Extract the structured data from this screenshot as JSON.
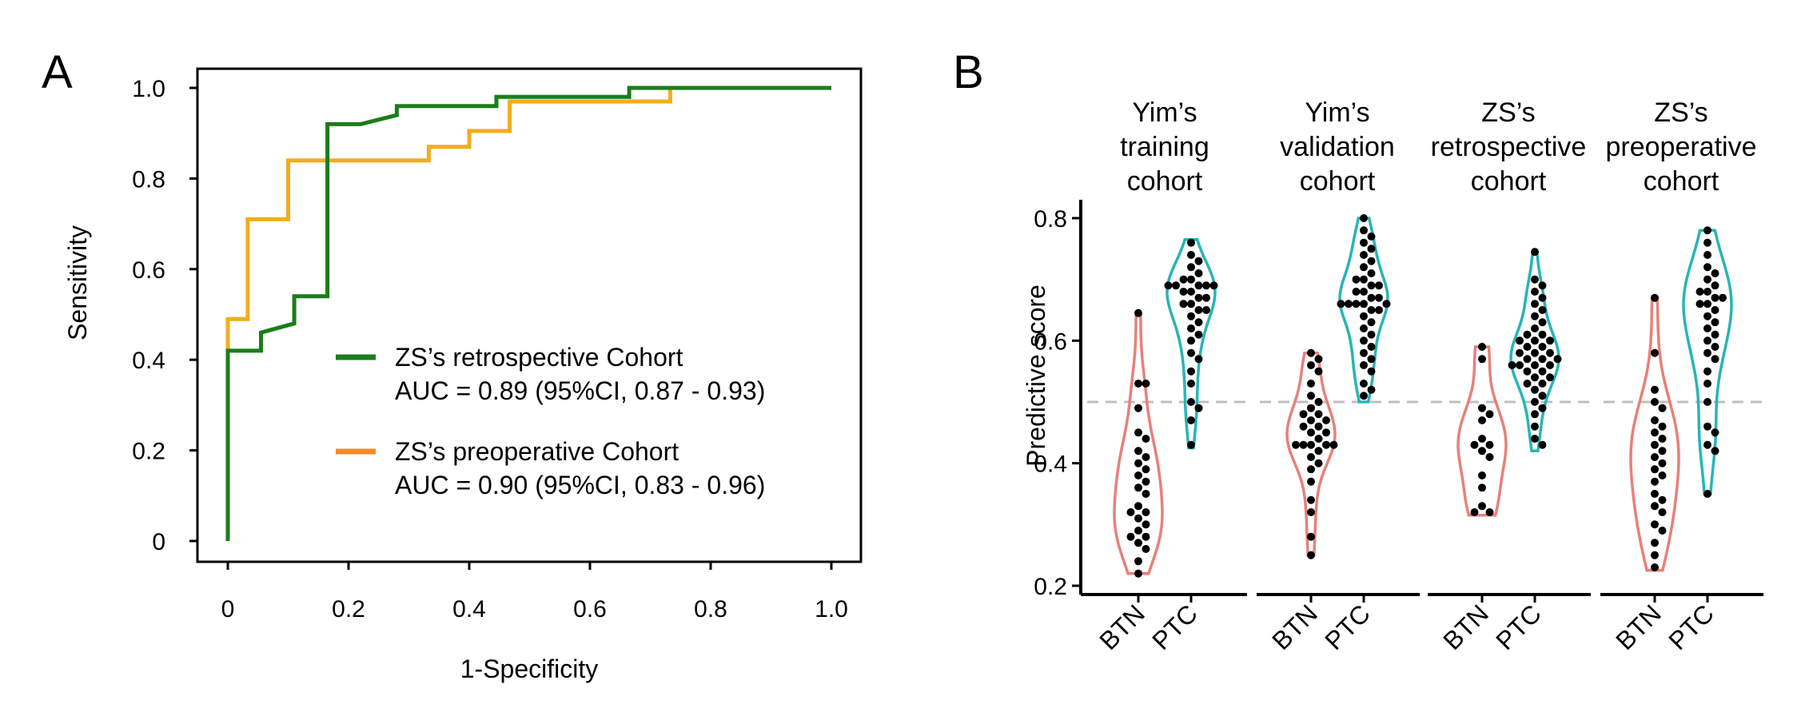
{
  "colors": {
    "green": "#1a7d1a",
    "orange": "#f2ad1c",
    "legend_orange": "#f28c28",
    "btn": "#e8807a",
    "ptc": "#26b5b8",
    "reference_line": "#bfbfbf",
    "dots": "#000000"
  },
  "panels": {
    "a_label": "A",
    "b_label": "B"
  },
  "legend": {
    "entries": [
      {
        "line1": "ZS’s retrospective Cohort",
        "line2": "AUC = 0.89 (95%CI, 0.87 - 0.93)",
        "color_key": "green"
      },
      {
        "line1": "ZS’s preoperative Cohort",
        "line2": "AUC = 0.90 (95%CI, 0.83 - 0.96)",
        "color_key": "legend_orange"
      }
    ]
  },
  "chart_data": [
    {
      "type": "line",
      "panel": "A",
      "xlabel": "1-Specificity",
      "ylabel": "Sensitivity",
      "xlim": [
        0,
        1
      ],
      "ylim": [
        0,
        1
      ],
      "xticks": [
        "0",
        "0.2",
        "0.4",
        "0.6",
        "0.8",
        "1.0"
      ],
      "yticks": [
        "0",
        "0.2",
        "0.4",
        "0.6",
        "0.8",
        "1.0"
      ],
      "legend_position": "bottom-right",
      "series": [
        {
          "name": "ZS’s retrospective Cohort",
          "color_key": "green",
          "points": [
            [
              0,
              0
            ],
            [
              0,
              0.42
            ],
            [
              0.055,
              0.42
            ],
            [
              0.055,
              0.46
            ],
            [
              0.11,
              0.48
            ],
            [
              0.11,
              0.54
            ],
            [
              0.165,
              0.54
            ],
            [
              0.165,
              0.92
            ],
            [
              0.22,
              0.92
            ],
            [
              0.28,
              0.94
            ],
            [
              0.28,
              0.96
            ],
            [
              0.445,
              0.96
            ],
            [
              0.445,
              0.98
            ],
            [
              0.665,
              0.98
            ],
            [
              0.665,
              1.0
            ],
            [
              1.0,
              1.0
            ]
          ]
        },
        {
          "name": "ZS’s preoperative Cohort",
          "color_key": "orange",
          "points": [
            [
              0,
              0.42
            ],
            [
              0,
              0.49
            ],
            [
              0.033,
              0.49
            ],
            [
              0.033,
              0.71
            ],
            [
              0.1,
              0.71
            ],
            [
              0.1,
              0.84
            ],
            [
              0.333,
              0.84
            ],
            [
              0.333,
              0.87
            ],
            [
              0.4,
              0.87
            ],
            [
              0.4,
              0.905
            ],
            [
              0.467,
              0.905
            ],
            [
              0.467,
              0.97
            ],
            [
              0.733,
              0.97
            ],
            [
              0.733,
              1.0
            ],
            [
              1.0,
              1.0
            ]
          ]
        }
      ]
    },
    {
      "type": "violin",
      "panel": "B",
      "ylabel": "Predictive score",
      "ylim": [
        0.2,
        0.8
      ],
      "yticks": [
        "0.2",
        "0.4",
        "0.6",
        "0.8"
      ],
      "reference_line": 0.5,
      "categories": [
        "BTN",
        "PTC"
      ],
      "facets": [
        {
          "title": [
            "Yim’s",
            "training",
            "cohort"
          ],
          "groups": [
            {
              "name": "BTN",
              "color_key": "btn",
              "min": 0.22,
              "max": 0.645,
              "values": [
                0.645,
                0.53,
                0.53,
                0.49,
                0.45,
                0.44,
                0.42,
                0.41,
                0.4,
                0.39,
                0.38,
                0.37,
                0.36,
                0.35,
                0.33,
                0.32,
                0.32,
                0.31,
                0.3,
                0.29,
                0.28,
                0.28,
                0.27,
                0.26,
                0.24,
                0.22
              ]
            },
            {
              "name": "PTC",
              "color_key": "ptc",
              "min": 0.425,
              "max": 0.765,
              "values": [
                0.76,
                0.74,
                0.73,
                0.72,
                0.71,
                0.7,
                0.7,
                0.69,
                0.69,
                0.69,
                0.69,
                0.69,
                0.68,
                0.68,
                0.67,
                0.67,
                0.66,
                0.66,
                0.65,
                0.65,
                0.64,
                0.63,
                0.62,
                0.61,
                0.6,
                0.58,
                0.57,
                0.55,
                0.53,
                0.5,
                0.49,
                0.47,
                0.43
              ]
            }
          ]
        },
        {
          "title": [
            "Yim’s",
            "validation",
            "cohort"
          ],
          "groups": [
            {
              "name": "BTN",
              "color_key": "btn",
              "min": 0.25,
              "max": 0.58,
              "values": [
                0.58,
                0.57,
                0.56,
                0.55,
                0.53,
                0.51,
                0.5,
                0.49,
                0.48,
                0.48,
                0.47,
                0.47,
                0.46,
                0.46,
                0.45,
                0.45,
                0.44,
                0.43,
                0.43,
                0.43,
                0.43,
                0.43,
                0.42,
                0.41,
                0.4,
                0.39,
                0.37,
                0.34,
                0.32,
                0.28,
                0.25
              ]
            },
            {
              "name": "PTC",
              "color_key": "ptc",
              "min": 0.5,
              "max": 0.8,
              "values": [
                0.8,
                0.78,
                0.77,
                0.76,
                0.75,
                0.74,
                0.73,
                0.72,
                0.71,
                0.7,
                0.7,
                0.69,
                0.69,
                0.68,
                0.68,
                0.67,
                0.67,
                0.66,
                0.66,
                0.66,
                0.66,
                0.66,
                0.65,
                0.65,
                0.64,
                0.63,
                0.62,
                0.61,
                0.6,
                0.59,
                0.58,
                0.57,
                0.56,
                0.55,
                0.53,
                0.52,
                0.51
              ]
            }
          ]
        },
        {
          "title": [
            "ZS’s",
            "retrospective",
            "cohort"
          ],
          "groups": [
            {
              "name": "BTN",
              "color_key": "btn",
              "min": 0.315,
              "max": 0.59,
              "values": [
                0.59,
                0.57,
                0.49,
                0.48,
                0.47,
                0.44,
                0.43,
                0.43,
                0.42,
                0.41,
                0.38,
                0.36,
                0.33,
                0.32,
                0.32
              ]
            },
            {
              "name": "PTC",
              "color_key": "ptc",
              "min": 0.42,
              "max": 0.745,
              "values": [
                0.745,
                0.7,
                0.69,
                0.68,
                0.67,
                0.66,
                0.65,
                0.64,
                0.63,
                0.62,
                0.61,
                0.61,
                0.6,
                0.6,
                0.6,
                0.59,
                0.59,
                0.58,
                0.58,
                0.58,
                0.57,
                0.57,
                0.57,
                0.56,
                0.56,
                0.56,
                0.56,
                0.55,
                0.55,
                0.54,
                0.54,
                0.53,
                0.53,
                0.52,
                0.51,
                0.5,
                0.49,
                0.48,
                0.46,
                0.44,
                0.43
              ]
            }
          ]
        },
        {
          "title": [
            "ZS’s",
            "preoperative",
            "cohort"
          ],
          "groups": [
            {
              "name": "BTN",
              "color_key": "btn",
              "min": 0.225,
              "max": 0.67,
              "values": [
                0.67,
                0.58,
                0.52,
                0.5,
                0.49,
                0.47,
                0.46,
                0.45,
                0.44,
                0.43,
                0.42,
                0.41,
                0.4,
                0.39,
                0.38,
                0.37,
                0.35,
                0.34,
                0.33,
                0.32,
                0.3,
                0.29,
                0.27,
                0.25,
                0.23
              ]
            },
            {
              "name": "PTC",
              "color_key": "ptc",
              "min": 0.35,
              "max": 0.78,
              "values": [
                0.78,
                0.76,
                0.74,
                0.72,
                0.71,
                0.7,
                0.69,
                0.68,
                0.68,
                0.67,
                0.67,
                0.66,
                0.66,
                0.65,
                0.64,
                0.63,
                0.62,
                0.61,
                0.6,
                0.59,
                0.58,
                0.57,
                0.55,
                0.53,
                0.5,
                0.46,
                0.45,
                0.43,
                0.42,
                0.35
              ]
            }
          ]
        }
      ]
    }
  ]
}
